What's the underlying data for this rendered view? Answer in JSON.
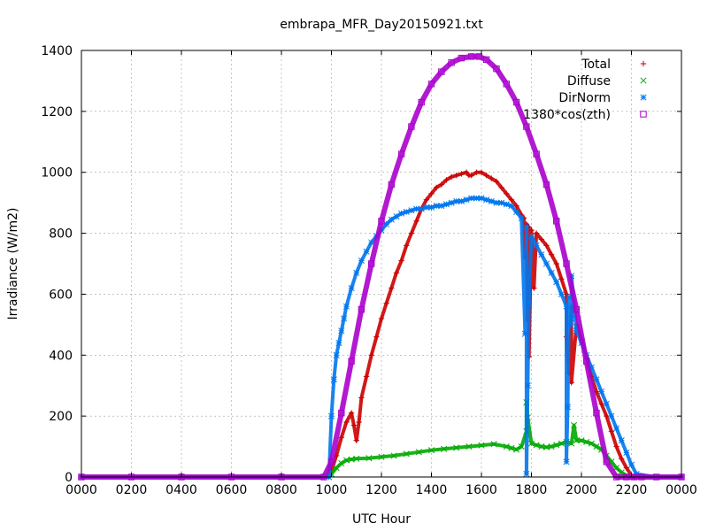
{
  "chart_data": {
    "type": "scatter",
    "title": "embrapa_MFR_Day20150921.txt",
    "xlabel": "UTC Hour",
    "ylabel": "Irradiance (W/m2)",
    "xlim": [
      0,
      24
    ],
    "ylim": [
      0,
      1400
    ],
    "x_ticks": [
      {
        "v": 0,
        "label": "0000"
      },
      {
        "v": 2,
        "label": "0200"
      },
      {
        "v": 4,
        "label": "0400"
      },
      {
        "v": 6,
        "label": "0600"
      },
      {
        "v": 8,
        "label": "0800"
      },
      {
        "v": 10,
        "label": "1000"
      },
      {
        "v": 12,
        "label": "1200"
      },
      {
        "v": 14,
        "label": "1400"
      },
      {
        "v": 16,
        "label": "1600"
      },
      {
        "v": 18,
        "label": "1800"
      },
      {
        "v": 20,
        "label": "2000"
      },
      {
        "v": 22,
        "label": "2200"
      },
      {
        "v": 24,
        "label": "0000"
      }
    ],
    "y_ticks": [
      0,
      200,
      400,
      600,
      800,
      1000,
      1200,
      1400
    ],
    "grid": true,
    "legend_position": "top-right",
    "series": [
      {
        "name": "Total",
        "marker": "plus",
        "color": "#cc0000",
        "x": [
          0,
          2,
          4,
          6,
          8,
          9.9,
          10.0,
          10.2,
          10.4,
          10.6,
          10.8,
          10.9,
          11.0,
          11.1,
          11.2,
          11.4,
          11.6,
          11.8,
          12.0,
          12.2,
          12.4,
          12.6,
          12.8,
          13.0,
          13.2,
          13.4,
          13.6,
          13.8,
          14.0,
          14.2,
          14.4,
          14.6,
          14.8,
          15.0,
          15.2,
          15.4,
          15.5,
          15.6,
          15.8,
          16.0,
          16.2,
          16.4,
          16.6,
          16.8,
          17.0,
          17.2,
          17.4,
          17.6,
          17.7,
          17.8,
          17.9,
          18.0,
          18.2,
          18.4,
          18.6,
          18.8,
          19.0,
          19.2,
          19.4,
          19.6,
          19.8,
          20.0,
          20.2,
          20.4,
          20.6,
          20.8,
          21.0,
          21.2,
          21.4,
          21.6,
          21.8,
          22.0,
          22.2,
          23,
          24,
          17.85,
          17.9,
          17.75,
          18.1,
          19.5,
          19.6,
          19.4
        ],
        "y": [
          0,
          0,
          0,
          0,
          0,
          0,
          20,
          70,
          130,
          180,
          210,
          170,
          120,
          180,
          260,
          330,
          400,
          460,
          520,
          570,
          620,
          670,
          710,
          760,
          800,
          840,
          880,
          910,
          930,
          950,
          960,
          975,
          985,
          990,
          995,
          1000,
          990,
          990,
          1000,
          1000,
          990,
          980,
          970,
          950,
          930,
          910,
          890,
          860,
          850,
          830,
          820,
          810,
          800,
          780,
          760,
          730,
          700,
          650,
          600,
          560,
          500,
          450,
          400,
          330,
          280,
          240,
          200,
          150,
          100,
          60,
          30,
          5,
          0,
          0,
          0,
          515,
          395,
          720,
          620,
          340,
          310,
          460
        ]
      },
      {
        "name": "Diffuse",
        "marker": "cross",
        "color": "#00aa00",
        "x": [
          0,
          2,
          4,
          6,
          8,
          9.9,
          10.0,
          10.2,
          10.4,
          10.6,
          10.8,
          11.0,
          11.5,
          12.0,
          12.5,
          13.0,
          13.5,
          14.0,
          14.5,
          15.0,
          15.5,
          16.0,
          16.5,
          17.0,
          17.2,
          17.4,
          17.6,
          17.8,
          18.0,
          18.2,
          18.4,
          18.6,
          18.8,
          19.0,
          19.2,
          19.4,
          19.6,
          19.8,
          20.0,
          20.2,
          20.4,
          20.6,
          20.8,
          21.0,
          21.2,
          21.4,
          21.6,
          21.8,
          22.0,
          22.2,
          23,
          24,
          17.85,
          17.8,
          19.7
        ],
        "y": [
          0,
          0,
          0,
          0,
          0,
          0,
          10,
          30,
          45,
          55,
          58,
          60,
          62,
          66,
          70,
          76,
          82,
          88,
          92,
          96,
          100,
          104,
          108,
          100,
          95,
          90,
          100,
          150,
          110,
          105,
          100,
          98,
          100,
          105,
          110,
          115,
          110,
          120,
          120,
          115,
          110,
          100,
          90,
          70,
          50,
          30,
          15,
          5,
          0,
          0,
          0,
          0,
          195,
          245,
          170
        ]
      },
      {
        "name": "DirNorm",
        "marker": "star",
        "color": "#0077ee",
        "x": [
          0,
          2,
          4,
          6,
          8,
          9.9,
          10.0,
          10.1,
          10.2,
          10.3,
          10.4,
          10.5,
          10.6,
          10.8,
          11.0,
          11.2,
          11.4,
          11.6,
          11.8,
          12.0,
          12.2,
          12.4,
          12.6,
          12.8,
          13.0,
          13.2,
          13.4,
          13.6,
          13.8,
          14.0,
          14.2,
          14.4,
          14.6,
          14.8,
          15.0,
          15.2,
          15.4,
          15.6,
          15.8,
          16.0,
          16.2,
          16.4,
          16.6,
          16.8,
          17.0,
          17.2,
          17.4,
          17.6,
          17.8,
          18.0,
          18.2,
          18.4,
          18.6,
          18.8,
          19.0,
          19.2,
          19.4,
          19.6,
          19.8,
          20.0,
          20.2,
          20.4,
          20.6,
          20.8,
          21.0,
          21.2,
          21.4,
          21.6,
          21.8,
          22.0,
          22.2,
          23,
          24,
          17.85,
          17.8,
          17.75,
          17.9,
          19.45,
          19.5,
          19.55,
          19.6,
          19.4
        ],
        "y": [
          0,
          0,
          0,
          0,
          0,
          0,
          200,
          320,
          400,
          440,
          480,
          520,
          560,
          620,
          670,
          710,
          740,
          770,
          790,
          810,
          830,
          845,
          855,
          865,
          870,
          875,
          880,
          880,
          885,
          885,
          890,
          890,
          895,
          900,
          905,
          905,
          910,
          915,
          915,
          915,
          910,
          905,
          900,
          900,
          895,
          890,
          870,
          850,
          820,
          790,
          760,
          730,
          700,
          670,
          640,
          600,
          560,
          520,
          480,
          440,
          400,
          360,
          320,
          280,
          240,
          200,
          160,
          120,
          80,
          40,
          10,
          0,
          0,
          300,
          10,
          470,
          570,
          230,
          590,
          500,
          660,
          50
        ]
      },
      {
        "name": "1380*cos(zth)",
        "marker": "square",
        "color": "#aa00cc",
        "x": [
          0,
          2,
          4,
          6,
          8,
          9.7,
          10.0,
          10.4,
          10.8,
          11.2,
          11.6,
          12.0,
          12.4,
          12.8,
          13.2,
          13.6,
          14.0,
          14.4,
          14.8,
          15.2,
          15.6,
          15.9,
          16.2,
          16.6,
          17.0,
          17.4,
          17.8,
          18.2,
          18.6,
          19.0,
          19.4,
          19.8,
          20.2,
          20.6,
          21.0,
          21.4,
          21.8,
          22.1,
          22.4,
          23,
          24
        ],
        "y": [
          0,
          0,
          0,
          0,
          0,
          0,
          50,
          210,
          380,
          550,
          700,
          840,
          960,
          1060,
          1150,
          1230,
          1290,
          1330,
          1360,
          1375,
          1380,
          1380,
          1370,
          1340,
          1290,
          1230,
          1150,
          1060,
          960,
          840,
          700,
          550,
          380,
          210,
          50,
          0,
          0,
          0,
          0,
          0,
          0
        ]
      }
    ]
  }
}
